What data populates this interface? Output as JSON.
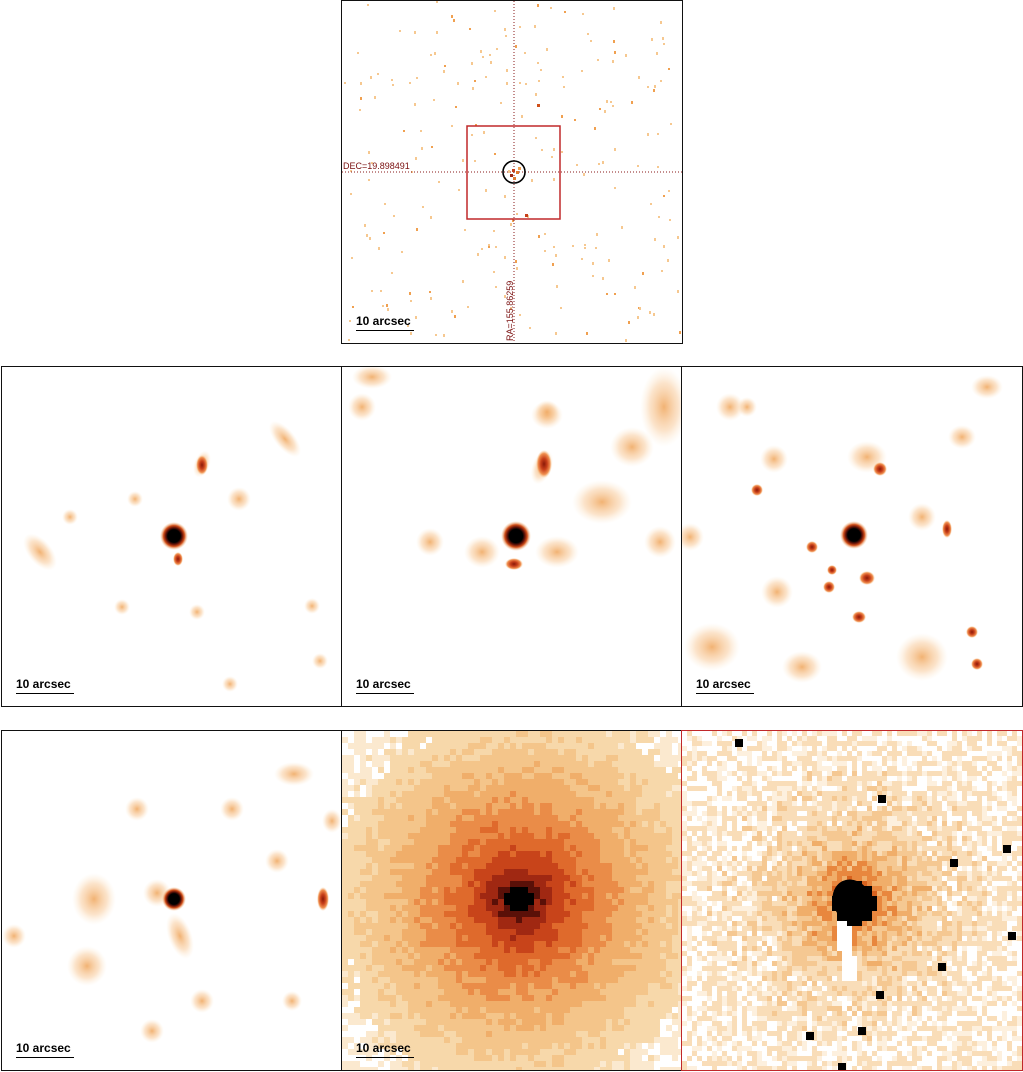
{
  "scalebar_label": "10 arcsec",
  "dec_label": "DEC=19.898491",
  "ra_label": "RA=155.86259",
  "colors": {
    "frame": "#111111",
    "highlight_frame": "#c0282a",
    "crosshair": "#8a1a1a",
    "palette_light": "#fde7c4",
    "palette_mid": "#f4a060",
    "palette_dark": "#b82a10",
    "core": "#000000"
  },
  "icons": [
    "target-circle-marker",
    "zoom-box-marker",
    "crosshair-lines"
  ]
}
